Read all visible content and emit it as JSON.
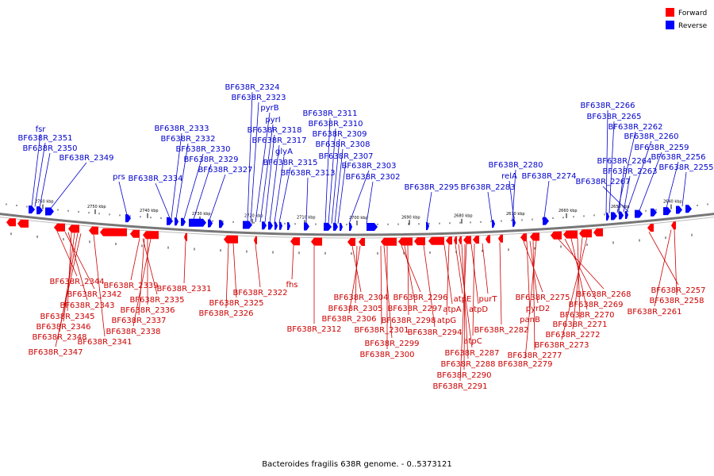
{
  "legend": {
    "forward_label": "Forward",
    "reverse_label": "Reverse",
    "forward_color": "#ff0000",
    "reverse_color": "#0000ff"
  },
  "colors": {
    "backbone": "#777777",
    "forward_label": "#cc0000",
    "reverse_label": "#0000cc"
  },
  "caption": "Bacteroides fragilis 638R genome. - 0..5373121",
  "scale_ticks": [
    "2760 kbp",
    "2750 kbp",
    "2740 kbp",
    "2730 kbp",
    "2720 kbp",
    "2710 kbp",
    "2700 kbp",
    "2690 kbp",
    "2680 kbp",
    "2670 kbp",
    "2660 kbp",
    "2650 kbp",
    "2640 kbp"
  ],
  "reverse_labels": [
    "fsr",
    "BF638R_2351",
    "BF638R_2350",
    "BF638R_2349",
    "prs",
    "BF638R_2334",
    "BF638R_2333",
    "BF638R_2332",
    "BF638R_2330",
    "BF638R_2329",
    "BF638R_2327",
    "BF638R_2324",
    "BF638R_2323",
    "pyrB",
    "pyrI",
    "BF638R_2318",
    "BF638R_2317",
    "glyA",
    "BF638R_2315",
    "BF638R_2313",
    "BF638R_2311",
    "BF638R_2310",
    "BF638R_2309",
    "BF638R_2308",
    "BF638R_2307",
    "BF638R_2303",
    "BF638R_2302",
    "BF638R_2295",
    "BF638R_2283",
    "BF638R_2280",
    "relA",
    "BF638R_2274",
    "BF638R_2266",
    "BF638R_2265",
    "BF638R_2262",
    "BF638R_2260",
    "BF638R_2259",
    "BF638R_2264",
    "BF638R_2263",
    "BF638R_2267",
    "BF638R_2256",
    "BF638R_2255"
  ],
  "forward_labels": [
    "BF638R_2344",
    "BF638R_2342",
    "BF638R_2343",
    "BF638R_2345",
    "BF638R_2346",
    "BF638R_2348",
    "BF638R_2347",
    "BF638R_2341",
    "BF638R_2339",
    "BF638R_2335",
    "BF638R_2336",
    "BF638R_2337",
    "BF638R_2338",
    "BF638R_2331",
    "BF638R_2325",
    "BF638R_2326",
    "BF638R_2322",
    "fhs",
    "BF638R_2312",
    "BF638R_2304",
    "BF638R_2305",
    "BF638R_2306",
    "BF638R_2301",
    "BF638R_2299",
    "BF638R_2300",
    "BF638R_2296",
    "BF638R_2297",
    "BF638R_2298",
    "BF638R_2294",
    "atpA",
    "atpG",
    "atpE",
    "atpD",
    "atpC",
    "purT",
    "BF638R_2287",
    "BF638R_2288",
    "BF638R_2290",
    "BF638R_2291",
    "BF638R_2282",
    "BF638R_2275",
    "pyrD2",
    "panB",
    "BF638R_2277",
    "BF638R_2279",
    "BF638R_2268",
    "BF638R_2269",
    "BF638R_2270",
    "BF638R_2271",
    "BF638R_2272",
    "BF638R_2273",
    "BF638R_2257",
    "BF638R_2258",
    "BF638R_2261"
  ]
}
